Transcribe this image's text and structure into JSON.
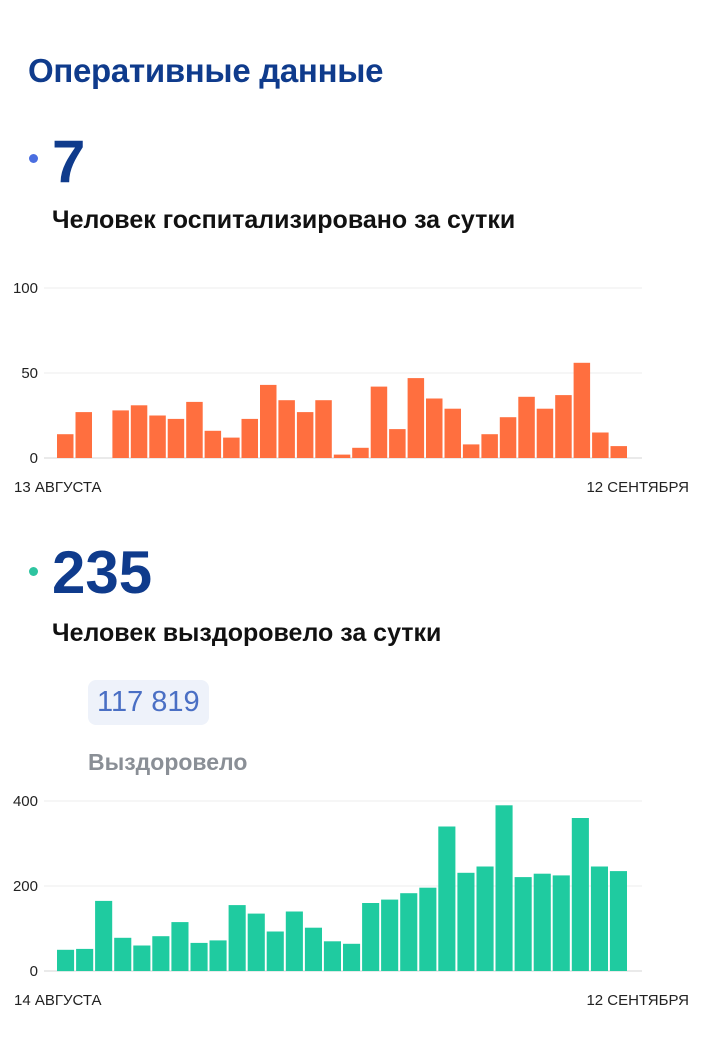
{
  "page": {
    "title": "Оперативные данные"
  },
  "hospitalized": {
    "value": "7",
    "label": "Человек госпитализировано за сутки",
    "dot_color": "#4a6ee0"
  },
  "recovered": {
    "value": "235",
    "label": "Человек выздоровело за сутки",
    "dot_color": "#2ec4a0",
    "total_value": "117 819",
    "total_label": "Выздоровело"
  },
  "chart_data": [
    {
      "type": "bar",
      "ylim": [
        0,
        100
      ],
      "yticks": [
        0,
        50,
        100
      ],
      "x_start_label": "13 АВГУСТА",
      "x_end_label": "12 СЕНТЯБРЯ",
      "color": "#ff6f3f",
      "values": [
        14,
        27,
        0,
        28,
        31,
        25,
        23,
        33,
        16,
        12,
        23,
        43,
        34,
        27,
        34,
        2,
        6,
        42,
        17,
        47,
        35,
        29,
        8,
        14,
        24,
        36,
        29,
        37,
        56,
        15,
        7
      ]
    },
    {
      "type": "bar",
      "ylim": [
        0,
        400
      ],
      "yticks": [
        0,
        200,
        400
      ],
      "x_start_label": "14 АВГУСТА",
      "x_end_label": "12 СЕНТЯБРЯ",
      "color": "#1fcba0",
      "values": [
        50,
        52,
        165,
        78,
        60,
        82,
        115,
        66,
        72,
        155,
        135,
        93,
        140,
        102,
        70,
        64,
        160,
        168,
        183,
        196,
        340,
        231,
        246,
        390,
        221,
        229,
        225,
        360,
        246,
        235
      ]
    }
  ]
}
